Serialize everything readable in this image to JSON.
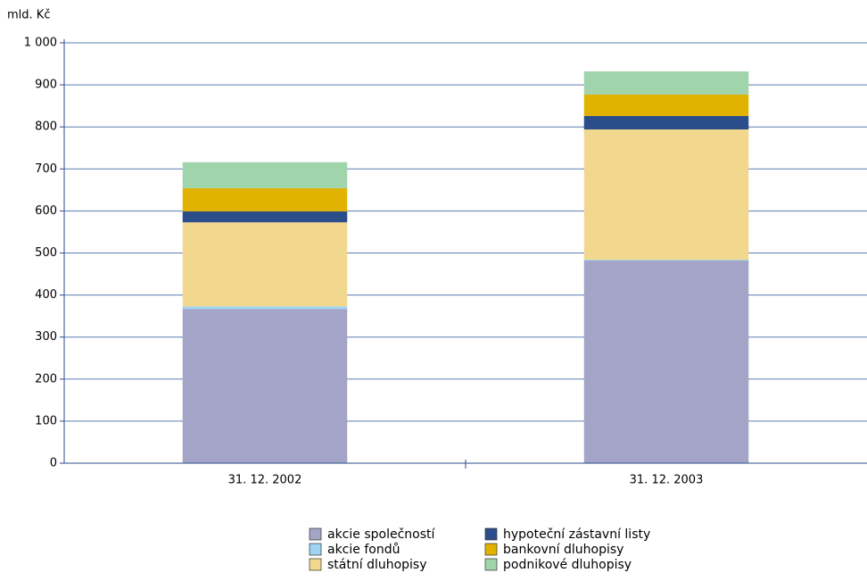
{
  "chart_data": {
    "type": "stacked-bar",
    "y_axis_label": "mld. Kč",
    "categories": [
      "31. 12. 2002",
      "31. 12. 2003"
    ],
    "series": [
      {
        "name": "akcie společností",
        "color": "#a3a4c7",
        "values": [
          367,
          482
        ]
      },
      {
        "name": "akcie fondů",
        "color": "#9fd4f2",
        "values": [
          6,
          2
        ]
      },
      {
        "name": "státní dluhopisy",
        "color": "#f2d88e",
        "values": [
          200,
          310
        ]
      },
      {
        "name": "hypoteční zástavní listy",
        "color": "#2b4e8a",
        "values": [
          26,
          32
        ]
      },
      {
        "name": "bankovní dluhopisy",
        "color": "#e1b200",
        "values": [
          55,
          51
        ]
      },
      {
        "name": "podnikové dluhopisy",
        "color": "#a0d4ab",
        "values": [
          62,
          55
        ]
      }
    ],
    "ylim": [
      0,
      1000
    ],
    "yticks": [
      0,
      100,
      200,
      300,
      400,
      500,
      600,
      700,
      800,
      900,
      {
        "value": 1000,
        "label": "1 000"
      }
    ],
    "grid": true
  }
}
